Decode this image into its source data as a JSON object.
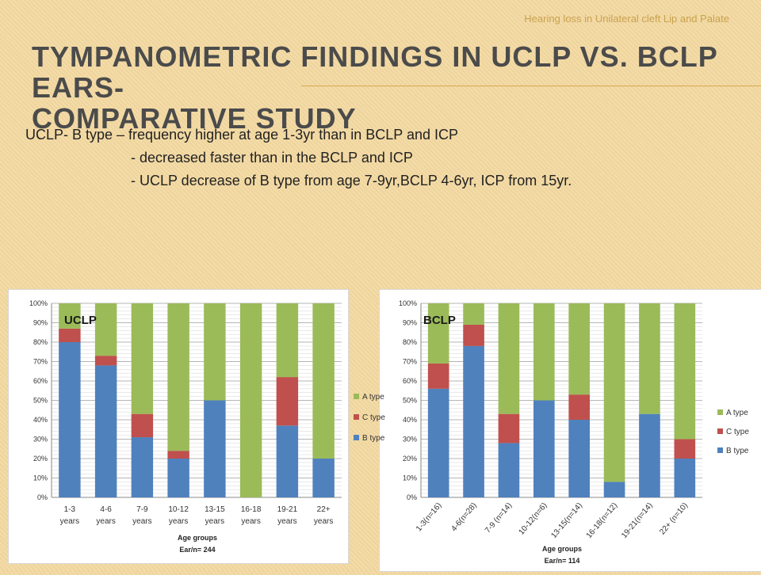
{
  "header_note": "Hearing loss in Unilateral cleft Lip and Palate",
  "title_line1": "Tympanometric  findings  in UCLP vs. BCLP EARS-",
  "title_line2": "comparative study",
  "notes": {
    "line1": "UCLP- B type – frequency  higher at age 1-3yr than in BCLP and ICP",
    "line2": "- decreased faster than in the BCLP and ICP",
    "line3": "- UCLP decrease of B type from age 7-9yr,BCLP 4-6yr, ICP from 15yr."
  },
  "colors": {
    "B type": "#4f81bd",
    "C type": "#c0504d",
    "A type": "#9bbb59"
  },
  "chart_data": [
    {
      "type": "bar",
      "stacked": true,
      "label": "UCLP",
      "categories": [
        "1-3 years",
        "4-6 years",
        "7-9 years",
        "10-12 years",
        "13-15 years",
        "16-18 years",
        "19-21 years",
        "22+ years"
      ],
      "series": [
        {
          "name": "B type",
          "values": [
            80,
            68,
            31,
            20,
            50,
            0,
            37,
            20
          ]
        },
        {
          "name": "C type",
          "values": [
            7,
            5,
            12,
            4,
            0,
            0,
            25,
            0
          ]
        },
        {
          "name": "A type",
          "values": [
            13,
            27,
            57,
            76,
            50,
            100,
            38,
            80
          ]
        }
      ],
      "yticks": [
        "0%",
        "10%",
        "20%",
        "30%",
        "40%",
        "50%",
        "60%",
        "70%",
        "80%",
        "90%",
        "100%"
      ],
      "ylim": [
        0,
        100
      ],
      "xlabel_line1": "Age groups",
      "xlabel_line2": "Ear/n= 244",
      "legend_position": "right"
    },
    {
      "type": "bar",
      "stacked": true,
      "label": "BCLP",
      "categories": [
        "1-3(n=16)",
        "4-6(n=28)",
        "7-9 (n=14)",
        "10-12(n=6)",
        "13-15(n=14)",
        "16-18(n=12)",
        "19-21(n=14)",
        "22+ (n=10)"
      ],
      "series": [
        {
          "name": "B type",
          "values": [
            56,
            78,
            28,
            50,
            40,
            8,
            43,
            20
          ]
        },
        {
          "name": "C type",
          "values": [
            13,
            11,
            15,
            0,
            13,
            0,
            0,
            10
          ]
        },
        {
          "name": "A type",
          "values": [
            31,
            11,
            57,
            50,
            47,
            92,
            57,
            70
          ]
        }
      ],
      "yticks": [
        "0%",
        "10%",
        "20%",
        "30%",
        "40%",
        "50%",
        "60%",
        "70%",
        "80%",
        "90%",
        "100%"
      ],
      "ylim": [
        0,
        100
      ],
      "xlabel_line1": "Age groups",
      "xlabel_line2": "Ear/n= 114",
      "legend_position": "right"
    }
  ]
}
